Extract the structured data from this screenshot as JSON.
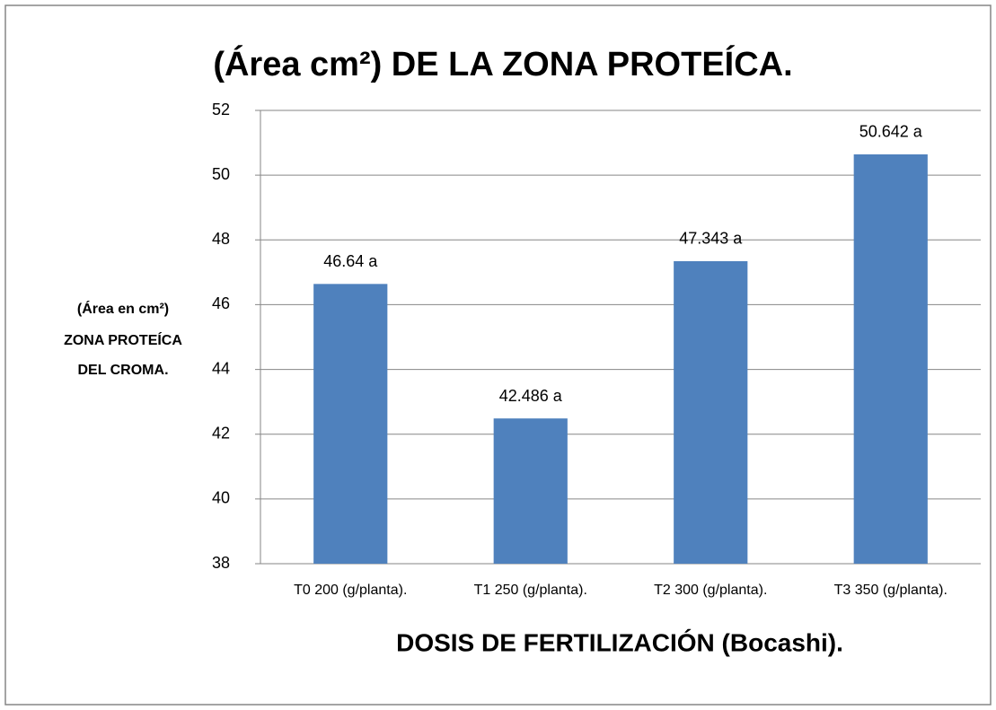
{
  "chart_data": {
    "type": "bar",
    "title": "(Área cm²) DE LA ZONA PROTEÍCA.",
    "y_label": [
      "(Área en cm²)",
      "ZONA PROTEÍCA",
      "DEL CROMA."
    ],
    "x_label": "DOSIS DE FERTILIZACIÓN (Bocashi).",
    "categories": [
      "T0  200 (g/planta).",
      "T1  250 (g/planta).",
      "T2  300 (g/planta).",
      "T3  350 (g/planta)."
    ],
    "values": [
      46.64,
      42.486,
      47.343,
      50.642
    ],
    "value_labels": [
      "46.64 a",
      "42.486 a",
      "47.343 a",
      "50.642 a"
    ],
    "color": "#4f81bd",
    "ylim": [
      38,
      52
    ],
    "yticks": [
      38,
      40,
      42,
      44,
      46,
      48,
      50,
      52
    ],
    "grid": true
  }
}
